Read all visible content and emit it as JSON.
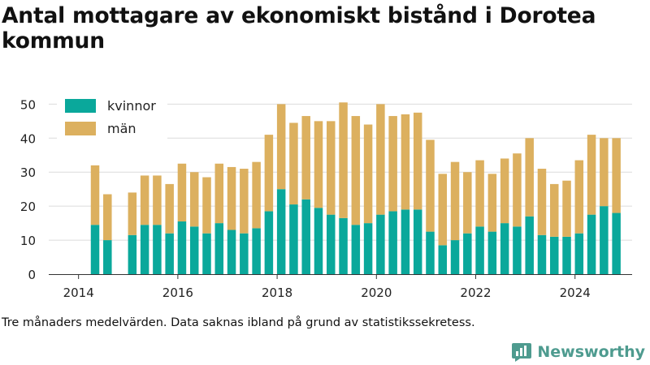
{
  "title": "Antal mottagare av ekonomiskt bistånd i Dorotea kommun",
  "caption": "Tre månaders medelvärden. Data saknas ibland på grund av statistikssekretess.",
  "brand": {
    "name": "Newsworthy",
    "logo_icon": "bar-chart-bubble-icon",
    "color": "#4e9b8f"
  },
  "chart_data": {
    "type": "bar",
    "stacked": true,
    "xlim": [
      2013.4,
      2025.15
    ],
    "ylim": [
      0,
      52
    ],
    "x_ticks": [
      2014,
      2016,
      2018,
      2020,
      2022,
      2024
    ],
    "y_ticks": [
      0,
      10,
      20,
      30,
      40,
      50
    ],
    "grid": true,
    "legend_position": "top-left",
    "x": [
      2014.333,
      2014.583,
      2015.083,
      2015.333,
      2015.583,
      2015.833,
      2016.083,
      2016.333,
      2016.583,
      2016.833,
      2017.083,
      2017.333,
      2017.583,
      2017.833,
      2018.083,
      2018.333,
      2018.583,
      2018.833,
      2019.083,
      2019.333,
      2019.583,
      2019.833,
      2020.083,
      2020.333,
      2020.583,
      2020.833,
      2021.083,
      2021.333,
      2021.583,
      2021.833,
      2022.083,
      2022.333,
      2022.583,
      2022.833,
      2023.083,
      2023.333,
      2023.583,
      2023.833,
      2024.083,
      2024.333,
      2024.583,
      2024.833
    ],
    "series": [
      {
        "name": "kvinnor",
        "color": "#0aa89b",
        "values": [
          14.5,
          10,
          11.5,
          14.5,
          14.5,
          12,
          15.5,
          14,
          12,
          15,
          13,
          12,
          13.5,
          18.5,
          25,
          20.5,
          22,
          19.5,
          17.5,
          16.5,
          14.5,
          15,
          17.5,
          18.5,
          19,
          19,
          12.5,
          8.5,
          10,
          12,
          14,
          12.5,
          15,
          14,
          17,
          11.5,
          11,
          11,
          12,
          17.5,
          20,
          18
        ]
      },
      {
        "name": "män",
        "color": "#dcb05f",
        "values": [
          17.5,
          13.5,
          12.5,
          14.5,
          14.5,
          14.5,
          17,
          16,
          16.5,
          17.5,
          18.5,
          19,
          19.5,
          22.5,
          25,
          24,
          24.5,
          25.5,
          27.5,
          34,
          32,
          29,
          32.5,
          28,
          28,
          28.5,
          27,
          21,
          23,
          18,
          19.5,
          17,
          19,
          21.5,
          23,
          19.5,
          15.5,
          16.5,
          21.5,
          23.5,
          20,
          22
        ]
      }
    ]
  }
}
